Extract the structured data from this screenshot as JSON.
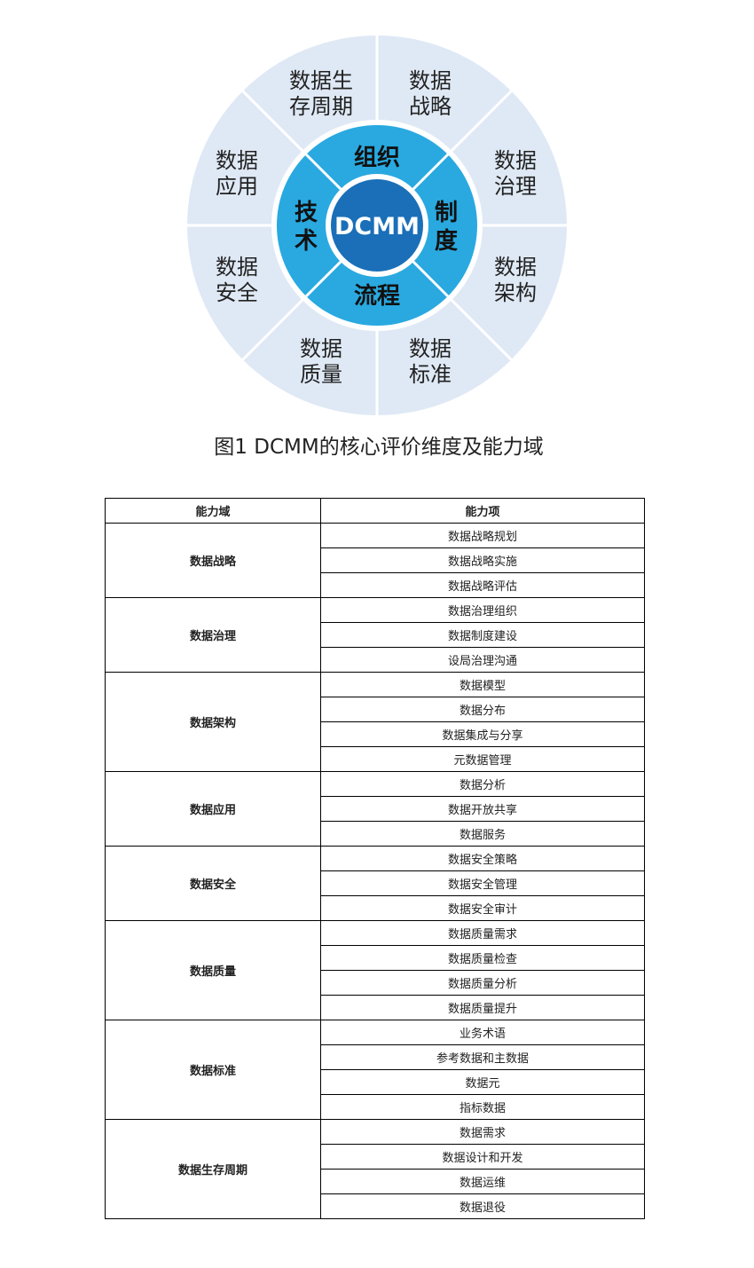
{
  "diagram": {
    "center": "DCMM",
    "inner": [
      "组织",
      "制度",
      "流程",
      "技术"
    ],
    "outer": [
      {
        "l1": "数据",
        "l2": "战略"
      },
      {
        "l1": "数据",
        "l2": "治理"
      },
      {
        "l1": "数据",
        "l2": "架构"
      },
      {
        "l1": "数据",
        "l2": "标准"
      },
      {
        "l1": "数据",
        "l2": "质量"
      },
      {
        "l1": "数据",
        "l2": "安全"
      },
      {
        "l1": "数据",
        "l2": "应用"
      },
      {
        "l1": "数据生",
        "l2": "存周期"
      }
    ],
    "colors": {
      "outer": "#dfe9f5",
      "ring": "#29a9e0",
      "center": "#1a6fb8"
    }
  },
  "caption": "图1  DCMM的核心评价维度及能力域",
  "table": {
    "headers": [
      "能力域",
      "能力项"
    ],
    "groups": [
      {
        "domain": "数据战略",
        "items": [
          "数据战略规划",
          "数据战略实施",
          "数据战略评估"
        ]
      },
      {
        "domain": "数据治理",
        "items": [
          "数据治理组织",
          "数据制度建设",
          "设局治理沟通"
        ]
      },
      {
        "domain": "数据架构",
        "items": [
          "数据模型",
          "数据分布",
          "数据集成与分享",
          "元数据管理"
        ]
      },
      {
        "domain": "数据应用",
        "items": [
          "数据分析",
          "数据开放共享",
          "数据服务"
        ]
      },
      {
        "domain": "数据安全",
        "items": [
          "数据安全策略",
          "数据安全管理",
          "数据安全审计"
        ]
      },
      {
        "domain": "数据质量",
        "items": [
          "数据质量需求",
          "数据质量检查",
          "数据质量分析",
          "数据质量提升"
        ]
      },
      {
        "domain": "数据标准",
        "items": [
          "业务术语",
          "参考数据和主数据",
          "数据元",
          "指标数据"
        ]
      },
      {
        "domain": "数据生存周期",
        "items": [
          "数据需求",
          "数据设计和开发",
          "数据运维",
          "数据退役"
        ]
      }
    ]
  }
}
